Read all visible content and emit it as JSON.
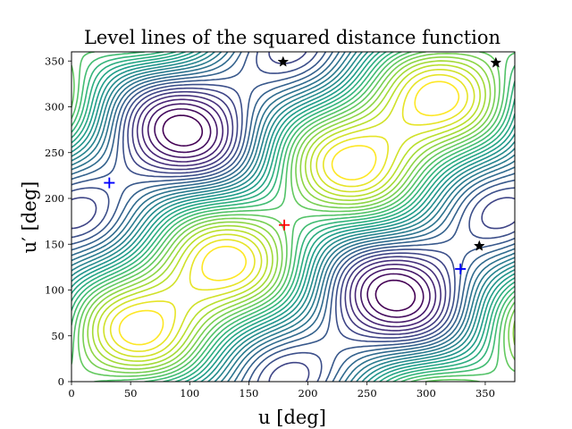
{
  "chart_data": {
    "type": "contour",
    "title": "Level lines of the squared distance function",
    "xlabel": "u [deg]",
    "ylabel": "u′ [deg]",
    "xlim": [
      0,
      375
    ],
    "ylim": [
      0,
      360
    ],
    "xticks": [
      0,
      50,
      100,
      150,
      200,
      250,
      300,
      350
    ],
    "yticks": [
      0,
      50,
      100,
      150,
      200,
      250,
      300,
      350
    ],
    "grid": false,
    "legend": "none",
    "colormap": "viridis",
    "contour_levels": 30,
    "markers": [
      {
        "name": "maximum",
        "symbol": "plus",
        "color": "#ff0000",
        "points": [
          [
            180,
            171
          ]
        ]
      },
      {
        "name": "minima",
        "symbol": "plus",
        "color": "#0000ff",
        "points": [
          [
            32,
            217
          ],
          [
            329,
            123
          ]
        ]
      },
      {
        "name": "saddles",
        "symbol": "star",
        "color": "#000000",
        "points": [
          [
            179,
            349
          ],
          [
            359,
            348
          ],
          [
            345,
            148
          ]
        ]
      }
    ]
  }
}
